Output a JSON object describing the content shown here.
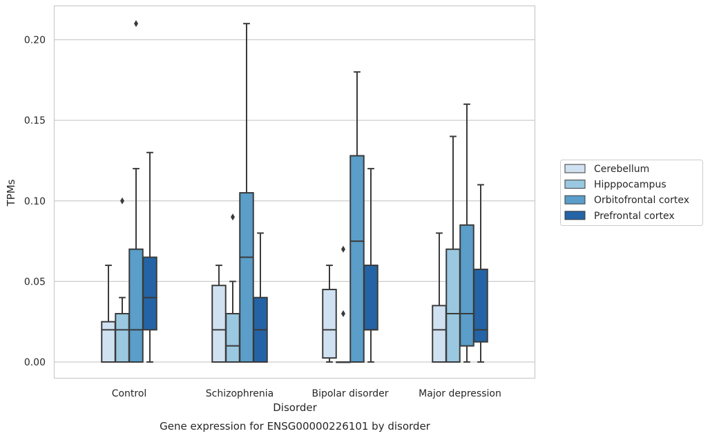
{
  "chart_data": {
    "type": "box",
    "title": "Gene expression for ENSG00000226101 by disorder",
    "xlabel": "Disorder",
    "ylabel": "TPMs",
    "ylim": [
      -0.0104,
      0.2205
    ],
    "yticks": [
      "0.00",
      "0.05",
      "0.10",
      "0.15",
      "0.20"
    ],
    "grid": "horizontal",
    "legend_position": "right",
    "categories": [
      "Control",
      "Schizophrenia",
      "Bipolar disorder",
      "Major depression"
    ],
    "series": [
      {
        "name": "Cerebellum",
        "color": "#d0e1f2",
        "boxes": [
          {
            "q1": 0.0,
            "median": 0.02,
            "q3": 0.025,
            "whisker_low": 0.0,
            "whisker_high": 0.06,
            "outliers": []
          },
          {
            "q1": 0.0,
            "median": 0.02,
            "q3": 0.0475,
            "whisker_low": 0.0,
            "whisker_high": 0.06,
            "outliers": []
          },
          {
            "q1": 0.0025,
            "median": 0.02,
            "q3": 0.045,
            "whisker_low": 0.0,
            "whisker_high": 0.06,
            "outliers": []
          },
          {
            "q1": 0.0,
            "median": 0.02,
            "q3": 0.035,
            "whisker_low": 0.0,
            "whisker_high": 0.08,
            "outliers": []
          }
        ]
      },
      {
        "name": "Hipppocampus",
        "color": "#9ac8e0",
        "boxes": [
          {
            "q1": 0.0,
            "median": 0.02,
            "q3": 0.03,
            "whisker_low": 0.0,
            "whisker_high": 0.04,
            "outliers": [
              0.1
            ]
          },
          {
            "q1": 0.0,
            "median": 0.01,
            "q3": 0.03,
            "whisker_low": 0.0,
            "whisker_high": 0.05,
            "outliers": [
              0.09
            ]
          },
          {
            "q1": 0.0,
            "median": 0.0,
            "q3": 0.0,
            "whisker_low": 0.0,
            "whisker_high": 0.0,
            "outliers": [
              0.03,
              0.07
            ]
          },
          {
            "q1": 0.0,
            "median": 0.03,
            "q3": 0.07,
            "whisker_low": 0.0,
            "whisker_high": 0.14,
            "outliers": []
          }
        ]
      },
      {
        "name": "Orbitofrontal cortex",
        "color": "#5a9ec9",
        "boxes": [
          {
            "q1": 0.0,
            "median": 0.02,
            "q3": 0.07,
            "whisker_low": 0.0,
            "whisker_high": 0.12,
            "outliers": [
              0.21
            ]
          },
          {
            "q1": 0.0,
            "median": 0.065,
            "q3": 0.105,
            "whisker_low": 0.0,
            "whisker_high": 0.21,
            "outliers": []
          },
          {
            "q1": 0.0,
            "median": 0.075,
            "q3": 0.128,
            "whisker_low": 0.0,
            "whisker_high": 0.18,
            "outliers": []
          },
          {
            "q1": 0.01,
            "median": 0.03,
            "q3": 0.085,
            "whisker_low": 0.0,
            "whisker_high": 0.16,
            "outliers": []
          }
        ]
      },
      {
        "name": "Prefrontal cortex",
        "color": "#2464a6",
        "boxes": [
          {
            "q1": 0.02,
            "median": 0.04,
            "q3": 0.065,
            "whisker_low": 0.0,
            "whisker_high": 0.13,
            "outliers": []
          },
          {
            "q1": 0.0,
            "median": 0.02,
            "q3": 0.04,
            "whisker_low": 0.0,
            "whisker_high": 0.08,
            "outliers": []
          },
          {
            "q1": 0.02,
            "median": 0.02,
            "q3": 0.06,
            "whisker_low": 0.0,
            "whisker_high": 0.12,
            "outliers": []
          },
          {
            "q1": 0.0125,
            "median": 0.02,
            "q3": 0.0575,
            "whisker_low": 0.0,
            "whisker_high": 0.11,
            "outliers": []
          }
        ]
      }
    ]
  }
}
